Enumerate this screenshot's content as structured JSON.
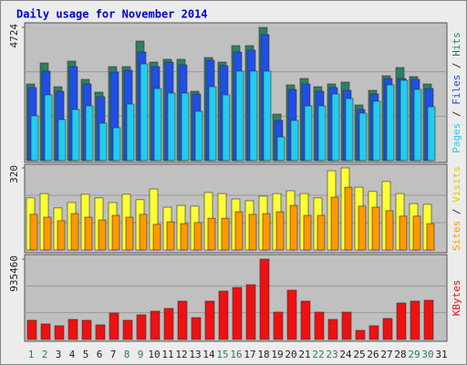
{
  "chart_data": {
    "type": "bar",
    "title": "Daily usage for November 2014",
    "categories": [
      "1",
      "2",
      "3",
      "4",
      "5",
      "6",
      "7",
      "8",
      "9",
      "10",
      "11",
      "12",
      "13",
      "14",
      "15",
      "16",
      "17",
      "18",
      "19",
      "20",
      "21",
      "22",
      "23",
      "24",
      "25",
      "26",
      "27",
      "28",
      "29",
      "30",
      "31"
    ],
    "category_colors": [
      "#2e7d4f",
      "#2e7d4f",
      "#222",
      "#222",
      "#222",
      "#222",
      "#222",
      "#2e7d4f",
      "#2e7d4f",
      "#222",
      "#222",
      "#222",
      "#222",
      "#222",
      "#2e7d4f",
      "#2e7d4f",
      "#222",
      "#222",
      "#222",
      "#222",
      "#222",
      "#2e7d4f",
      "#2e7d4f",
      "#222",
      "#222",
      "#222",
      "#222",
      "#222",
      "#2e7d4f",
      "#2e7d4f",
      "#222"
    ],
    "legend_separator": " / ",
    "panels": [
      {
        "ylim": [
          0,
          4724
        ],
        "yticks": [
          4724
        ],
        "series": [
          {
            "name": "Hits",
            "color": "#2f7f62",
            "values": [
              2718,
              3462,
              2621,
              3527,
              2880,
              2427,
              3333,
              3333,
              4239,
              3494,
              3592,
              3592,
              2459,
              3656,
              3494,
              4077,
              4077,
              4724,
              1650,
              2686,
              2912,
              2621,
              2718,
              2783,
              1974,
              2491,
              3009,
              3300,
              2977,
              2718,
              null
            ]
          },
          {
            "name": "Files",
            "color": "#1f4fe6",
            "values": [
              2588,
              3171,
              2459,
              3333,
              2718,
              2265,
              3139,
              3203,
              3850,
              3333,
              3494,
              3397,
              2362,
              3559,
              3365,
              3850,
              3915,
              4465,
              1424,
              2524,
              2718,
              2459,
              2588,
              2491,
              1812,
              2362,
              2912,
              2912,
              2880,
              2556,
              null
            ]
          },
          {
            "name": "Pages",
            "color": "#22ccee",
            "values": [
              1586,
              2330,
              1456,
              1812,
              1941,
              1327,
              1165,
              2006,
              3430,
              2556,
              2394,
              2394,
              1747,
              2621,
              2330,
              3171,
              3171,
              3171,
              841,
              1424,
              1941,
              1941,
              2362,
              2200,
              1682,
              2103,
              2686,
              2847,
              2524,
              1909,
              null
            ]
          }
        ]
      },
      {
        "ylim": [
          0,
          320
        ],
        "yticks": [
          320
        ],
        "series": [
          {
            "name": "Visits",
            "color": "#ffff33",
            "values": [
              203,
              220,
              164,
              185,
              217,
              203,
              185,
              217,
              196,
              238,
              167,
              174,
              171,
              224,
              220,
              199,
              192,
              210,
              220,
              231,
              220,
              203,
              309,
              320,
              245,
              228,
              267,
              220,
              181,
              178,
              null
            ]
          },
          {
            "name": "Sites",
            "color": "#ff9900",
            "values": [
              139,
              128,
              114,
              142,
              128,
              117,
              135,
              128,
              139,
              100,
              110,
              103,
              107,
              124,
              124,
              149,
              139,
              142,
              149,
              174,
              135,
              135,
              206,
              245,
              171,
              167,
              153,
              132,
              132,
              103,
              null
            ]
          }
        ]
      },
      {
        "ylim": [
          0,
          935460
        ],
        "yticks": [
          935460
        ],
        "series": [
          {
            "name": "KBytes",
            "color": "#ee1111",
            "values": [
              223230,
              180710,
              159450,
              233860,
              223230,
              170080,
              308270,
              223230,
              287010,
              329530,
              361420,
              446460,
              255120,
              446460,
              563390,
              605910,
              637800,
              935460,
              318900,
              574020,
              446460,
              318900,
              233860,
              318900,
              106300,
              159450,
              244490,
              425200,
              446460,
              457090,
              null
            ]
          }
        ]
      }
    ]
  }
}
